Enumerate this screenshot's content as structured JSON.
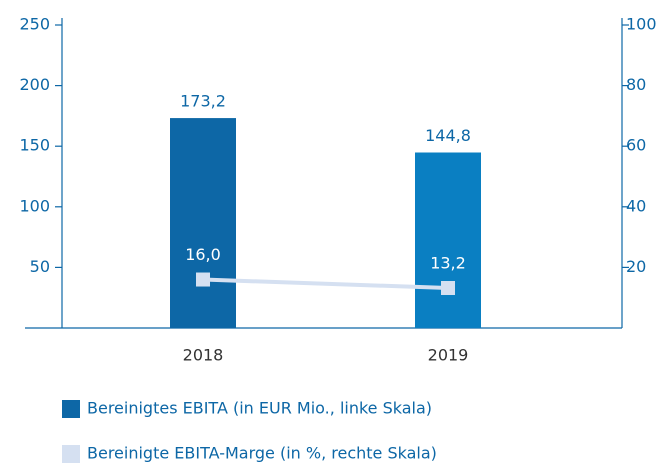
{
  "chart_data": {
    "type": "bar_line",
    "categories": [
      "2018",
      "2019"
    ],
    "ylim": [
      0,
      250
    ],
    "yticks": [
      50,
      100,
      150,
      200,
      250
    ],
    "y2lim": [
      0,
      100
    ],
    "y2ticks": [
      20,
      40,
      60,
      80,
      100
    ],
    "series": [
      {
        "name": "Bereinigtes EBITA (in EUR Mio., linke Skala)",
        "type": "bar",
        "color": "#0d67a6",
        "colors": [
          "#0d67a6",
          "#0a7fc2"
        ],
        "values": [
          173.2,
          144.8
        ],
        "value_labels": [
          "173,2",
          "144,8"
        ]
      },
      {
        "name": "Bereinigte EBITA-Marge (in %, rechte Skala)",
        "type": "line",
        "axis": "y2",
        "color": "#d5e0f1",
        "values": [
          16.0,
          13.2
        ],
        "value_labels": [
          "16,0",
          "13,2"
        ]
      }
    ]
  }
}
